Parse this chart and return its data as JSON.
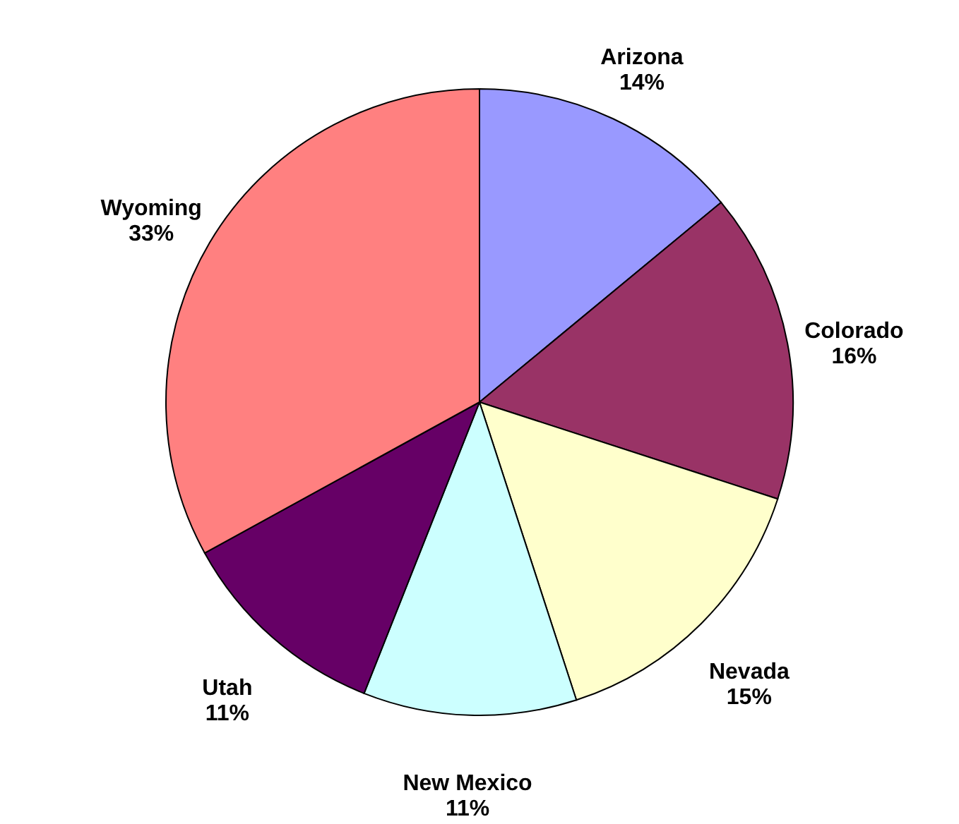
{
  "chart_data": {
    "type": "pie",
    "categories": [
      "Arizona",
      "Colorado",
      "Nevada",
      "New Mexico",
      "Utah",
      "Wyoming"
    ],
    "values": [
      14,
      16,
      15,
      11,
      11,
      33
    ],
    "value_labels": [
      "14%",
      "16%",
      "15%",
      "11%",
      "11%",
      "33%"
    ],
    "colors": [
      "#9999ff",
      "#993366",
      "#ffffcc",
      "#ccffff",
      "#660066",
      "#ff8080"
    ]
  }
}
